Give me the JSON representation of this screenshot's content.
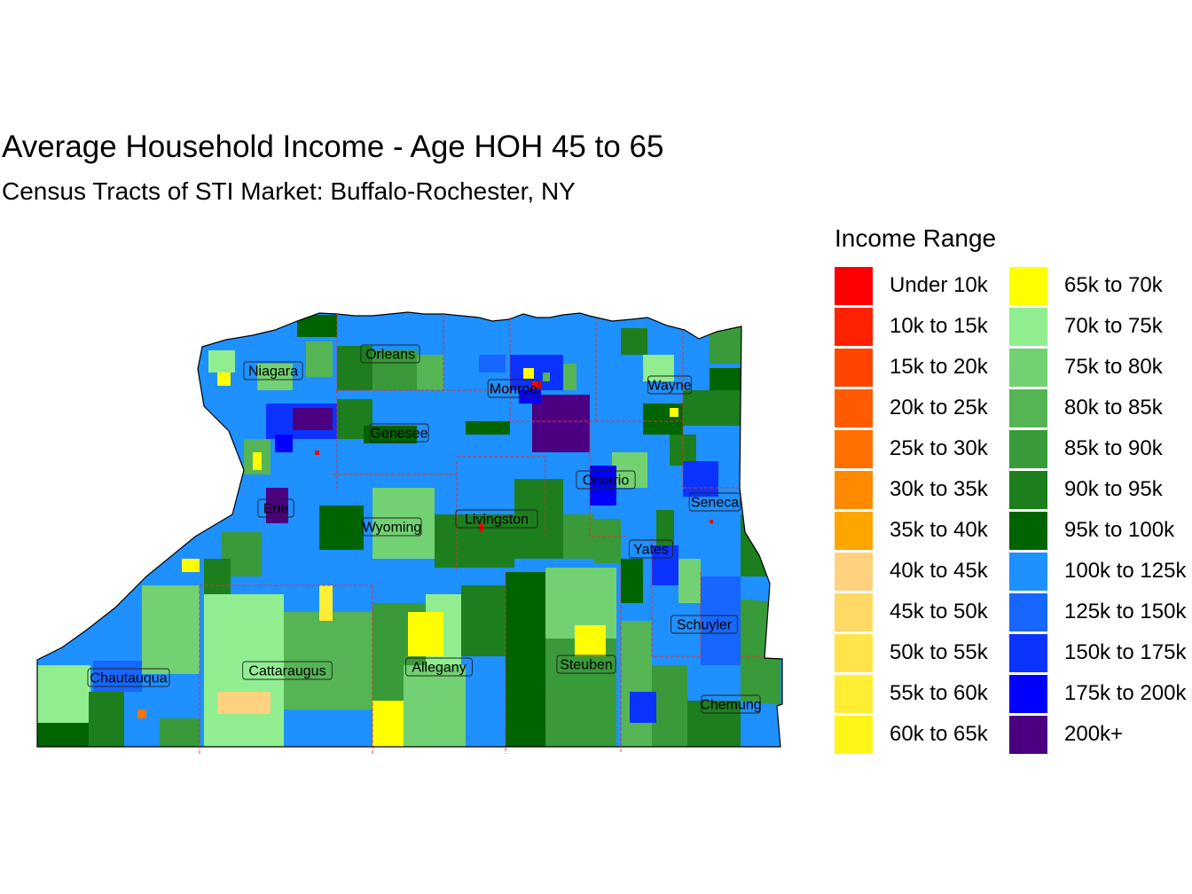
{
  "title": "Average Household Income - Age HOH 45 to 65",
  "subtitle": "Census Tracts of STI Market: Buffalo-Rochester, NY",
  "legend": {
    "title": "Income Range",
    "items": [
      {
        "label": "Under 10k",
        "color": "#FF0000"
      },
      {
        "label": "10k to 15k",
        "color": "#FF2200"
      },
      {
        "label": "15k to 20k",
        "color": "#FF4500"
      },
      {
        "label": "20k to 25k",
        "color": "#FF5A00"
      },
      {
        "label": "25k to 30k",
        "color": "#FF7000"
      },
      {
        "label": "30k to 35k",
        "color": "#FF8A00"
      },
      {
        "label": "35k to 40k",
        "color": "#FFA500"
      },
      {
        "label": "40k to 45k",
        "color": "#FFD27F"
      },
      {
        "label": "45k to 50k",
        "color": "#FFD966"
      },
      {
        "label": "50k to 55k",
        "color": "#FFE44C"
      },
      {
        "label": "55k to 60k",
        "color": "#FFEE33"
      },
      {
        "label": "60k to 65k",
        "color": "#FFF519"
      },
      {
        "label": "65k to 70k",
        "color": "#FFFF00"
      },
      {
        "label": "70k to 75k",
        "color": "#90EE90"
      },
      {
        "label": "75k to 80k",
        "color": "#72D172"
      },
      {
        "label": "80k to 85k",
        "color": "#55B555"
      },
      {
        "label": "85k to 90k",
        "color": "#389A38"
      },
      {
        "label": "90k to 95k",
        "color": "#1C7E1C"
      },
      {
        "label": "95k to 100k",
        "color": "#006400"
      },
      {
        "label": "100k to 125k",
        "color": "#1E90FF"
      },
      {
        "label": "125k to 150k",
        "color": "#1666FF"
      },
      {
        "label": "150k to 175k",
        "color": "#0B33FF"
      },
      {
        "label": "175k to 200k",
        "color": "#0000FF"
      },
      {
        "label": "200k+",
        "color": "#4B0082"
      }
    ]
  },
  "counties": [
    {
      "name": "Niagara"
    },
    {
      "name": "Orleans"
    },
    {
      "name": "Monroe"
    },
    {
      "name": "Wayne"
    },
    {
      "name": "Genesee"
    },
    {
      "name": "Ontario"
    },
    {
      "name": "Erie"
    },
    {
      "name": "Wyoming"
    },
    {
      "name": "Livingston"
    },
    {
      "name": "Seneca"
    },
    {
      "name": "Yates"
    },
    {
      "name": "Schuyler"
    },
    {
      "name": "Chautauqua"
    },
    {
      "name": "Cattaraugus"
    },
    {
      "name": "Allegany"
    },
    {
      "name": "Steuben"
    },
    {
      "name": "Chemung"
    }
  ]
}
